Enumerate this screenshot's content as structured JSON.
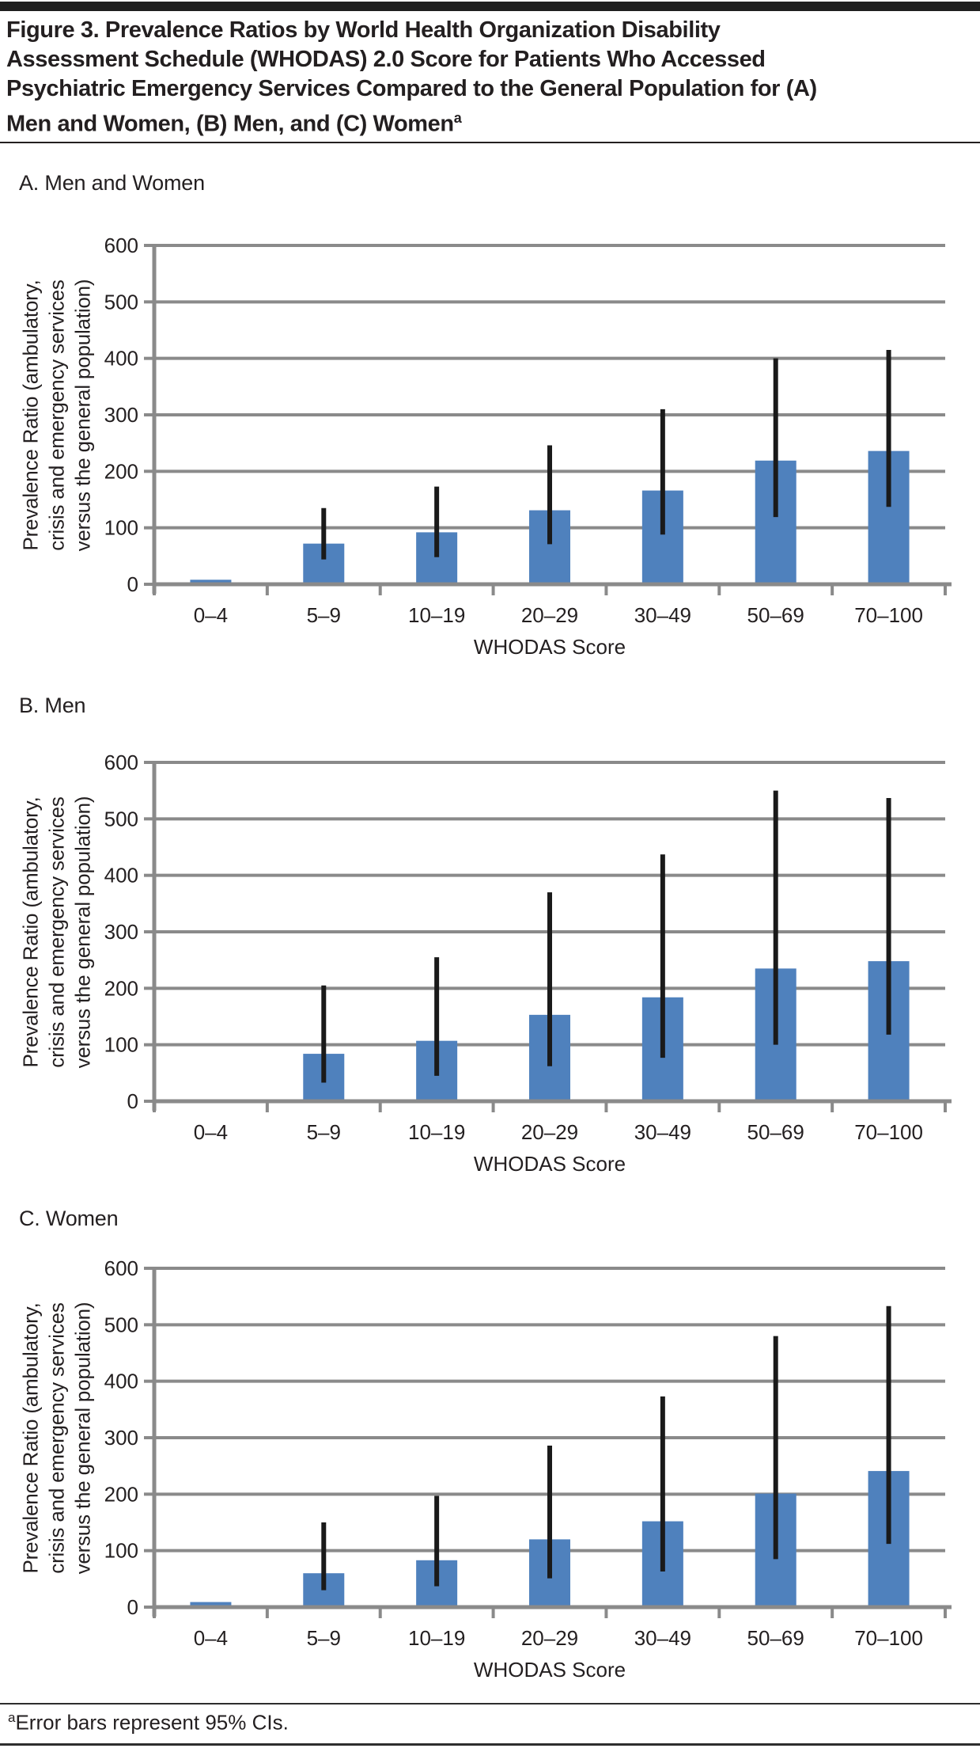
{
  "header": {
    "title_lines": [
      "Figure 3. Prevalence Ratios by World Health Organization Disability",
      "Assessment Schedule (WHODAS) 2.0 Score for Patients Who Accessed",
      "Psychiatric Emergency Services Compared to the General Population for (A)",
      "Men and Women, (B) Men, and (C) Women"
    ],
    "title_sup": "a"
  },
  "styles": {
    "grid_color": "#8a8a8a",
    "ink_color": "#231f20",
    "bar_color": "#4f81bd",
    "error_color": "#1a1a1a"
  },
  "chart_data": [
    {
      "type": "bar",
      "panel": "A",
      "title": "A. Men and Women",
      "categories": [
        "0–4",
        "5–9",
        "10–19",
        "20–29",
        "30–49",
        "50–69",
        "70–100"
      ],
      "values": [
        8,
        72,
        92,
        131,
        166,
        219,
        236
      ],
      "ci_low": [
        null,
        44,
        48,
        71,
        88,
        119,
        137
      ],
      "ci_high": [
        null,
        135,
        173,
        246,
        310,
        400,
        415
      ],
      "xlabel": "WHODAS Score",
      "ylabel": "Prevalence Ratio (ambulatory,\ncrisis and emergency services\nversus the general population)",
      "ylim": [
        0,
        600
      ],
      "ytick_step": 100,
      "grid": true,
      "legend": "none",
      "bar_color": "#4f81bd",
      "error_color": "#1a1a1a",
      "error_note": "95% CI"
    },
    {
      "type": "bar",
      "panel": "B",
      "title": "B. Men",
      "categories": [
        "0–4",
        "5–9",
        "10–19",
        "20–29",
        "30–49",
        "50–69",
        "70–100"
      ],
      "values": [
        0,
        84,
        107,
        153,
        184,
        235,
        248
      ],
      "ci_low": [
        null,
        33,
        45,
        62,
        77,
        100,
        118
      ],
      "ci_high": [
        null,
        205,
        255,
        370,
        437,
        550,
        537
      ],
      "xlabel": "WHODAS Score",
      "ylabel": "Prevalence Ratio (ambulatory,\ncrisis and emergency services\nversus the general population)",
      "ylim": [
        0,
        600
      ],
      "ytick_step": 100,
      "grid": true,
      "legend": "none",
      "bar_color": "#4f81bd",
      "error_color": "#1a1a1a",
      "error_note": "95% CI"
    },
    {
      "type": "bar",
      "panel": "C",
      "title": "C. Women",
      "categories": [
        "0–4",
        "5–9",
        "10–19",
        "20–29",
        "30–49",
        "50–69",
        "70–100"
      ],
      "values": [
        9,
        60,
        83,
        120,
        152,
        201,
        241
      ],
      "ci_low": [
        null,
        30,
        37,
        51,
        63,
        85,
        112
      ],
      "ci_high": [
        null,
        150,
        197,
        286,
        373,
        480,
        533
      ],
      "xlabel": "WHODAS Score",
      "ylabel": "Prevalence Ratio (ambulatory,\ncrisis and emergency services\nversus the general population)",
      "ylim": [
        0,
        600
      ],
      "ytick_step": 100,
      "grid": true,
      "legend": "none",
      "bar_color": "#4f81bd",
      "error_color": "#1a1a1a",
      "error_note": "95% CI"
    }
  ],
  "footer": {
    "marker": "a",
    "text": "Error bars represent 95% CIs."
  }
}
